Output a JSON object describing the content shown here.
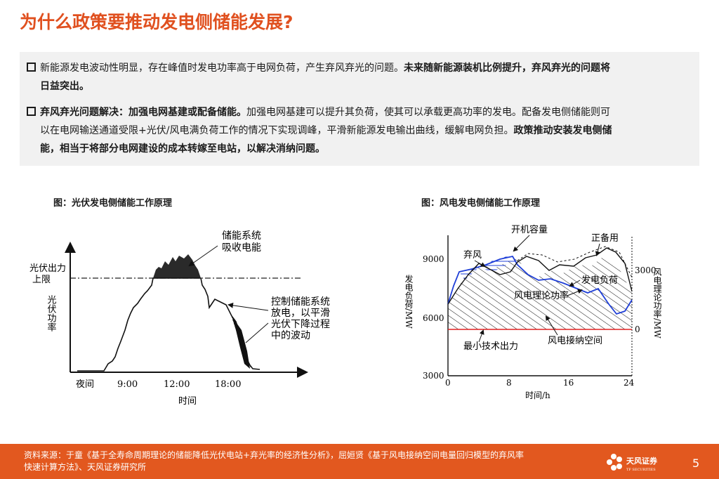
{
  "title": "为什么政策要推动发电侧储能发展?",
  "bullets": [
    {
      "line1_normal": "新能源发电波动性明显，存在峰值时发电功率高于电网负荷，产生弃风弃光的问题。",
      "line1_bold": "未来随新能源装机比例提升，弃风弃光的问题将",
      "line2_bold": "日益突出。"
    },
    {
      "line1_bold": "弃风弃光问题解决：加强电网基建或配备储能。",
      "line1_normal": "加强电网基建可以提升其负荷，使其可以承载更高功率的发电。配备发电侧储能则可",
      "line2_normal": "以在电网输送通道受限+光伏/风电满负荷工作的情况下实现调峰，平滑新能源发电输出曲线，缓解电网负担。",
      "line2_bold": "政策推动安装发电侧储",
      "line3_bold": "能，相当于将部分电网建设的成本转嫁至电站，以解决消纳问题。"
    }
  ],
  "figures": {
    "left": {
      "title": "图：光伏发电侧储能工作原理",
      "y_axis": "光伏功率",
      "limit_label_1": "光伏出力",
      "limit_label_2": "上限",
      "annot_top_1": "储能系统",
      "annot_top_2": "吸收电能",
      "annot_right_1": "控制储能系统",
      "annot_right_2": "放电，以平滑",
      "annot_right_3": "光伏下降过程",
      "annot_right_4": "中的波动",
      "x_ticks": [
        "夜间",
        "9:00",
        "12:00",
        "18:00"
      ],
      "x_label": "时间"
    },
    "right": {
      "title": "图：风电发电侧储能工作原理",
      "y_left_label": "发电负荷/MW",
      "y_right_label": "风电理论功率/MW",
      "y_left_ticks": [
        "9000",
        "6000",
        "3000"
      ],
      "y_right_ticks": [
        "3000",
        "0"
      ],
      "x_ticks": [
        "0",
        "8",
        "16",
        "24"
      ],
      "x_label": "时间/h",
      "labels": {
        "capacity": "开机容量",
        "reserve": "正备用",
        "curtail": "弃风",
        "load": "发电负荷",
        "theory": "风电理论功率",
        "space": "风电接纳空间",
        "min_output": "最小技术出力"
      }
    }
  },
  "footer": {
    "source_line1": "资料来源：于童《基于全寿命周期理论的储能降低光伏电站+弃光率的经济性分析》，屈姮贤《基于风电接纳空间电量回归模型的弃风率",
    "source_line2": "快速计算方法》、天风证券研究所",
    "logo_text": "天风证券",
    "logo_sub": "TF SECURITIES",
    "page": "5"
  },
  "colors": {
    "accent": "#e0501f",
    "footer": "#e2581f",
    "wind_blue": "#1f3fd8",
    "min_red": "#e02020"
  }
}
